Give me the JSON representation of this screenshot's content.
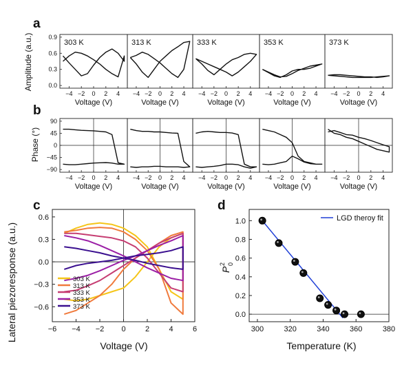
{
  "panel_labels": {
    "a": "a",
    "b": "b",
    "c": "c",
    "d": "d"
  },
  "temperatures": [
    "303 K",
    "313 K",
    "333 K",
    "353 K",
    "373 K"
  ],
  "row_a": {
    "ylabel": "Amplitude (a.u.)",
    "xlabel": "Voltage (V)",
    "yticks": [
      "0.9",
      "0.6",
      "0.3",
      "0.0"
    ],
    "xticks": [
      "-4",
      "-2",
      "0",
      "2",
      "4"
    ]
  },
  "row_b": {
    "ylabel": "Phase (°)",
    "xlabel": "Voltage (V)",
    "yticks": [
      "90",
      "45",
      "0",
      "-45",
      "-90"
    ],
    "xticks": [
      "-4",
      "-2",
      "0",
      "2",
      "4"
    ]
  },
  "panel_c": {
    "xlabel": "Voltage (V)",
    "ylabel": "Lateral piezoresponse (a.u.)",
    "xticks": [
      "-6",
      "-4",
      "-2",
      "0",
      "2",
      "4",
      "6"
    ],
    "yticks": [
      "0.6",
      "0.3",
      "0.0",
      "-0.3",
      "-0.6"
    ],
    "legend": [
      "303 K",
      "313 K",
      "333 K",
      "353 K",
      "373 K"
    ],
    "colors": [
      "#f5c518",
      "#f07a3c",
      "#c63d72",
      "#9b1fa6",
      "#3a0f8f"
    ]
  },
  "panel_d": {
    "xlabel": "Temperature (K)",
    "ylabel_main": "P",
    "ylabel_sub": "0",
    "ylabel_sup": "2",
    "xticks": [
      "300",
      "320",
      "340",
      "360",
      "380"
    ],
    "yticks": [
      "1.0",
      "0.8",
      "0.6",
      "0.4",
      "0.2",
      "0.0"
    ],
    "legend": "LGD theroy fit",
    "fit_color": "#1f3fd6"
  },
  "chart_data": [
    {
      "type": "line",
      "panel": "a",
      "xlabel": "Voltage (V)",
      "ylabel": "Amplitude (a.u.)",
      "xlim": [
        -5.5,
        5.5
      ],
      "ylim": [
        -0.05,
        0.95
      ],
      "series": [
        {
          "name": "303 K",
          "x": [
            -5,
            -4,
            -3,
            -2,
            -1,
            0,
            1,
            2,
            3,
            4,
            5
          ],
          "forward": [
            0.55,
            0.42,
            0.3,
            0.18,
            0.22,
            0.38,
            0.52,
            0.62,
            0.68,
            0.6,
            0.45
          ],
          "reverse": [
            0.45,
            0.55,
            0.62,
            0.6,
            0.55,
            0.48,
            0.4,
            0.3,
            0.22,
            0.16,
            0.55
          ]
        },
        {
          "name": "313 K",
          "x": [
            -5,
            -4,
            -3,
            -2,
            -1,
            0,
            1,
            2,
            3,
            4,
            5
          ],
          "forward": [
            0.52,
            0.4,
            0.25,
            0.15,
            0.3,
            0.45,
            0.55,
            0.65,
            0.72,
            0.8,
            0.82
          ],
          "reverse": [
            0.52,
            0.56,
            0.62,
            0.58,
            0.5,
            0.42,
            0.32,
            0.22,
            0.15,
            0.3,
            0.82
          ]
        },
        {
          "name": "333 K",
          "x": [
            -5,
            -4,
            -3,
            -2,
            -1,
            0,
            1,
            2,
            3,
            4,
            5
          ],
          "forward": [
            0.5,
            0.4,
            0.28,
            0.2,
            0.3,
            0.4,
            0.48,
            0.52,
            0.58,
            0.6,
            0.58
          ],
          "reverse": [
            0.5,
            0.45,
            0.4,
            0.35,
            0.3,
            0.25,
            0.18,
            0.25,
            0.35,
            0.45,
            0.58
          ]
        },
        {
          "name": "353 K",
          "x": [
            -5,
            -4,
            -3,
            -2,
            -1,
            0,
            1,
            2,
            3,
            4,
            5
          ],
          "forward": [
            0.3,
            0.25,
            0.2,
            0.16,
            0.17,
            0.22,
            0.28,
            0.32,
            0.36,
            0.38,
            0.4
          ],
          "reverse": [
            0.3,
            0.24,
            0.18,
            0.15,
            0.2,
            0.27,
            0.3,
            0.3,
            0.32,
            0.36,
            0.4
          ]
        },
        {
          "name": "373 K",
          "x": [
            -5,
            -4,
            -3,
            -2,
            -1,
            0,
            1,
            2,
            3,
            4,
            5
          ],
          "forward": [
            0.19,
            0.18,
            0.17,
            0.16,
            0.15,
            0.15,
            0.15,
            0.15,
            0.16,
            0.17,
            0.18
          ],
          "reverse": [
            0.19,
            0.2,
            0.2,
            0.19,
            0.18,
            0.17,
            0.16,
            0.16,
            0.15,
            0.16,
            0.18
          ]
        }
      ]
    },
    {
      "type": "line",
      "panel": "b",
      "xlabel": "Voltage (V)",
      "ylabel": "Phase (°)",
      "xlim": [
        -5.5,
        5.5
      ],
      "ylim": [
        -100,
        100
      ],
      "series": [
        {
          "name": "303 K",
          "x": [
            -5,
            -4,
            -3,
            -2,
            -1,
            0,
            1,
            2,
            3,
            4,
            5
          ],
          "forward": [
            60,
            60,
            58,
            56,
            55,
            54,
            52,
            50,
            40,
            -65,
            -70
          ],
          "reverse": [
            -70,
            -72,
            -72,
            -70,
            -68,
            -66,
            -65,
            -64,
            -66,
            -70,
            -70
          ]
        },
        {
          "name": "313 K",
          "x": [
            -5,
            -4,
            -3,
            -2,
            -1,
            0,
            1,
            2,
            3,
            4,
            5
          ],
          "forward": [
            60,
            55,
            52,
            52,
            50,
            50,
            48,
            46,
            45,
            -60,
            -80
          ],
          "reverse": [
            -80,
            -82,
            -80,
            -80,
            -78,
            -78,
            -80,
            -80,
            -80,
            -82,
            -80
          ]
        },
        {
          "name": "333 K",
          "x": [
            -5,
            -4,
            -3,
            -2,
            -1,
            0,
            1,
            2,
            3,
            4,
            5
          ],
          "forward": [
            45,
            50,
            52,
            50,
            48,
            48,
            46,
            40,
            -70,
            -80,
            -80
          ],
          "reverse": [
            -80,
            -82,
            -80,
            -78,
            -75,
            -70,
            -70,
            -72,
            -80,
            -85,
            -80
          ]
        },
        {
          "name": "353 K",
          "x": [
            -5,
            -4,
            -3,
            -2,
            -1,
            0,
            1,
            2,
            3,
            4,
            5
          ],
          "forward": [
            60,
            55,
            50,
            40,
            30,
            10,
            -40,
            -60,
            -65,
            -70,
            -70
          ],
          "reverse": [
            -70,
            -72,
            -70,
            -65,
            -60,
            -40,
            -50,
            -62,
            -68,
            -70,
            -70
          ]
        },
        {
          "name": "373 K",
          "x": [
            -5,
            -4,
            -3,
            -2,
            -1,
            0,
            1,
            2,
            3,
            4,
            5
          ],
          "forward": [
            50,
            55,
            48,
            40,
            38,
            30,
            25,
            18,
            10,
            2,
            -5
          ],
          "reverse": [
            60,
            45,
            40,
            30,
            25,
            15,
            5,
            -5,
            -15,
            -20,
            -25
          ]
        }
      ]
    },
    {
      "type": "line",
      "panel": "c",
      "xlabel": "Voltage (V)",
      "ylabel": "Lateral piezoresponse (a.u.)",
      "xlim": [
        -6,
        6
      ],
      "ylim": [
        -0.8,
        0.7
      ],
      "series": [
        {
          "name": "303 K",
          "x": [
            -5,
            -4,
            -3,
            -2,
            -1,
            0,
            1,
            2,
            3,
            4,
            5
          ],
          "forward": [
            0.38,
            0.45,
            0.5,
            0.52,
            0.5,
            0.45,
            0.35,
            0.2,
            -0.1,
            -0.4,
            -0.5
          ],
          "reverse": [
            -0.5,
            -0.52,
            -0.5,
            -0.45,
            -0.4,
            -0.35,
            -0.2,
            0.0,
            0.2,
            0.32,
            0.38
          ]
        },
        {
          "name": "313 K",
          "x": [
            -5,
            -4,
            -3,
            -2,
            -1,
            0,
            1,
            2,
            3,
            4,
            5
          ],
          "forward": [
            0.4,
            0.42,
            0.45,
            0.46,
            0.45,
            0.4,
            0.3,
            0.15,
            -0.1,
            -0.55,
            -0.7
          ],
          "reverse": [
            -0.7,
            -0.65,
            -0.55,
            -0.45,
            -0.3,
            -0.1,
            0.05,
            0.15,
            0.25,
            0.35,
            0.4
          ]
        },
        {
          "name": "333 K",
          "x": [
            -5,
            -4,
            -3,
            -2,
            -1,
            0,
            1,
            2,
            3,
            4,
            5
          ],
          "forward": [
            0.38,
            0.38,
            0.36,
            0.34,
            0.32,
            0.28,
            0.2,
            0.05,
            -0.15,
            -0.35,
            -0.4
          ],
          "reverse": [
            -0.4,
            -0.38,
            -0.32,
            -0.25,
            -0.15,
            -0.05,
            0.05,
            0.15,
            0.25,
            0.32,
            0.38
          ]
        },
        {
          "name": "353 K",
          "x": [
            -5,
            -4,
            -3,
            -2,
            -1,
            0,
            1,
            2,
            3,
            4,
            5
          ],
          "forward": [
            0.35,
            0.32,
            0.28,
            0.22,
            0.15,
            0.08,
            0.0,
            -0.08,
            -0.15,
            -0.22,
            -0.25
          ],
          "reverse": [
            -0.25,
            -0.22,
            -0.18,
            -0.12,
            -0.05,
            0.02,
            0.08,
            0.15,
            0.22,
            0.28,
            0.35
          ]
        },
        {
          "name": "373 K",
          "x": [
            -5,
            -4,
            -3,
            -2,
            -1,
            0,
            1,
            2,
            3,
            4,
            5
          ],
          "forward": [
            0.2,
            0.18,
            0.15,
            0.12,
            0.08,
            0.05,
            0.02,
            -0.02,
            -0.05,
            -0.08,
            -0.1
          ],
          "reverse": [
            -0.1,
            -0.05,
            -0.02,
            0.0,
            0.02,
            0.05,
            0.08,
            0.1,
            0.12,
            0.15,
            0.2
          ]
        }
      ]
    },
    {
      "type": "scatter",
      "panel": "d",
      "xlabel": "Temperature (K)",
      "ylabel": "P0^2",
      "xlim": [
        295,
        380
      ],
      "ylim": [
        -0.08,
        1.12
      ],
      "points": [
        {
          "x": 303,
          "y": 1.0
        },
        {
          "x": 313,
          "y": 0.76
        },
        {
          "x": 323,
          "y": 0.56
        },
        {
          "x": 328,
          "y": 0.44
        },
        {
          "x": 338,
          "y": 0.17
        },
        {
          "x": 343,
          "y": 0.1
        },
        {
          "x": 348,
          "y": 0.04
        },
        {
          "x": 353,
          "y": 0.0
        },
        {
          "x": 363,
          "y": 0.0
        }
      ],
      "fit": {
        "name": "LGD theroy fit",
        "x": [
          303,
          352
        ],
        "y": [
          1.0,
          -0.04
        ]
      }
    }
  ]
}
